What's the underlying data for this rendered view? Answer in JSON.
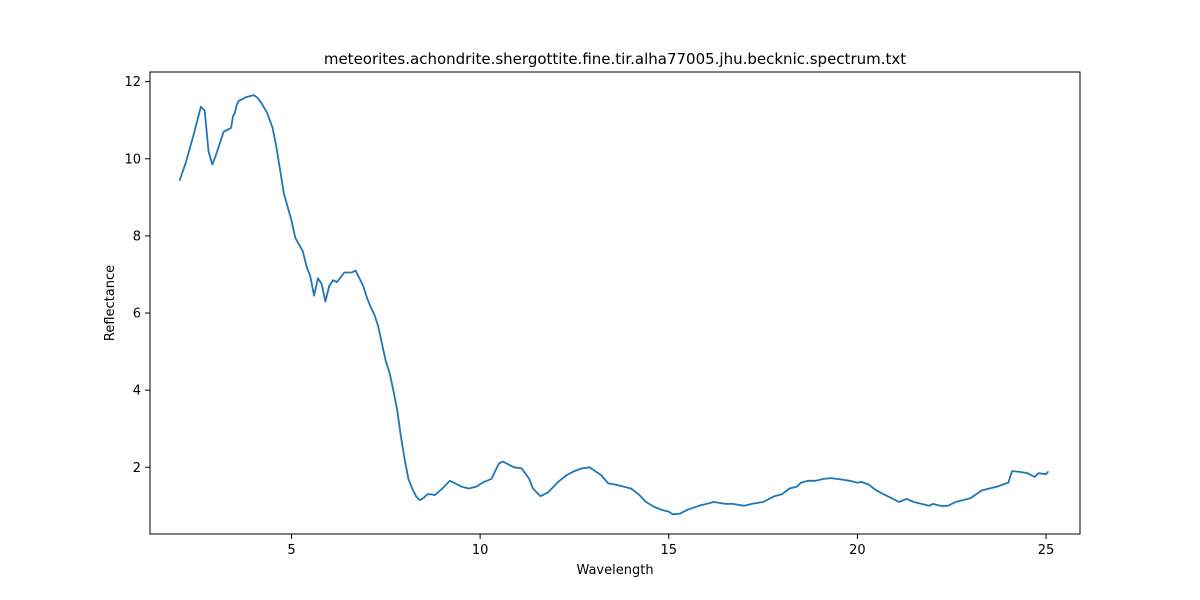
{
  "chart_data": {
    "type": "line",
    "title": "meteorites.achondrite.shergottite.fine.tir.alha77005.jhu.becknic.spectrum.txt",
    "xlabel": "Wavelength",
    "ylabel": "Reflectance",
    "xlim": [
      1.25,
      25.9
    ],
    "ylim": [
      0.27,
      12.25
    ],
    "xticks": [
      5,
      10,
      15,
      20,
      25
    ],
    "yticks": [
      2,
      4,
      6,
      8,
      10,
      12
    ],
    "grid": false,
    "line_color": "#1f77b4",
    "series": [
      {
        "x": [
          2.04,
          2.2,
          2.4,
          2.6,
          2.7,
          2.8,
          2.9,
          3.0,
          3.2,
          3.4,
          3.45,
          3.5,
          3.55,
          3.6,
          3.8,
          4.0,
          4.1,
          4.2,
          4.35,
          4.5,
          4.6,
          4.8,
          5.0,
          5.1,
          5.3,
          5.4,
          5.5,
          5.6,
          5.7,
          5.8,
          5.9,
          6.0,
          6.1,
          6.2,
          6.4,
          6.6,
          6.7,
          6.8,
          6.9,
          7.0,
          7.1,
          7.2,
          7.3,
          7.4,
          7.5,
          7.6,
          7.7,
          7.8,
          7.9,
          8.0,
          8.1,
          8.2,
          8.3,
          8.4,
          8.5,
          8.6,
          8.7,
          8.8,
          9.0,
          9.2,
          9.4,
          9.5,
          9.7,
          9.9,
          10.1,
          10.3,
          10.5,
          10.6,
          10.8,
          10.9,
          11.1,
          11.3,
          11.4,
          11.6,
          11.8,
          11.9,
          12.1,
          12.3,
          12.5,
          12.7,
          12.9,
          13.2,
          13.4,
          13.6,
          13.8,
          14.0,
          14.2,
          14.4,
          14.6,
          14.8,
          15.0,
          15.1,
          15.3,
          15.5,
          15.8,
          16.0,
          16.2,
          16.5,
          16.7,
          17.0,
          17.2,
          17.5,
          17.8,
          18.0,
          18.2,
          18.4,
          18.5,
          18.7,
          18.9,
          19.1,
          19.3,
          19.6,
          19.8,
          20.0,
          20.1,
          20.3,
          20.5,
          20.7,
          20.9,
          21.1,
          21.3,
          21.5,
          21.7,
          21.9,
          22.0,
          22.2,
          22.4,
          22.6,
          22.8,
          23.0,
          23.3,
          23.5,
          23.7,
          24.0,
          24.1,
          24.3,
          24.5,
          24.7,
          24.8,
          25.0,
          25.05
        ],
        "y": [
          9.45,
          9.9,
          10.6,
          11.35,
          11.25,
          10.2,
          9.85,
          10.1,
          10.7,
          10.8,
          11.1,
          11.2,
          11.4,
          11.5,
          11.6,
          11.65,
          11.58,
          11.45,
          11.2,
          10.8,
          10.3,
          9.1,
          8.4,
          7.95,
          7.6,
          7.2,
          6.95,
          6.45,
          6.9,
          6.75,
          6.3,
          6.7,
          6.85,
          6.8,
          7.05,
          7.05,
          7.1,
          6.9,
          6.7,
          6.4,
          6.15,
          5.95,
          5.65,
          5.2,
          4.75,
          4.45,
          4.0,
          3.5,
          2.8,
          2.2,
          1.7,
          1.45,
          1.25,
          1.15,
          1.2,
          1.3,
          1.3,
          1.28,
          1.45,
          1.65,
          1.55,
          1.5,
          1.45,
          1.5,
          1.62,
          1.7,
          2.1,
          2.15,
          2.05,
          2.0,
          1.97,
          1.7,
          1.45,
          1.25,
          1.35,
          1.45,
          1.65,
          1.8,
          1.9,
          1.97,
          2.0,
          1.8,
          1.58,
          1.55,
          1.5,
          1.45,
          1.3,
          1.1,
          0.98,
          0.9,
          0.85,
          0.78,
          0.8,
          0.9,
          1.0,
          1.05,
          1.1,
          1.05,
          1.05,
          1.0,
          1.05,
          1.1,
          1.25,
          1.3,
          1.45,
          1.5,
          1.6,
          1.65,
          1.65,
          1.7,
          1.72,
          1.68,
          1.65,
          1.6,
          1.62,
          1.55,
          1.4,
          1.3,
          1.2,
          1.1,
          1.18,
          1.1,
          1.05,
          1.0,
          1.05,
          1.0,
          1.0,
          1.1,
          1.15,
          1.2,
          1.4,
          1.45,
          1.5,
          1.6,
          1.9,
          1.88,
          1.85,
          1.75,
          1.85,
          1.82,
          1.88
        ]
      }
    ]
  }
}
